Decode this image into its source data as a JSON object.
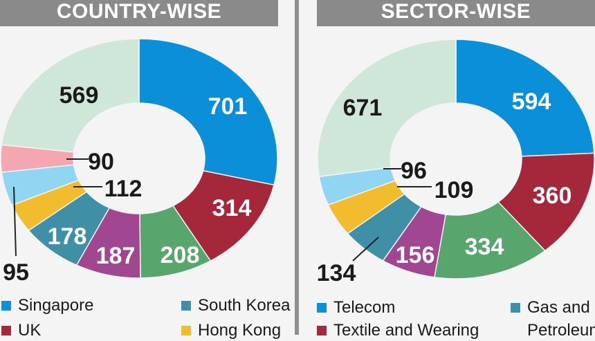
{
  "colors": {
    "blue": "#0a8fd8",
    "red": "#a5283a",
    "green": "#58a56d",
    "purple": "#a14691",
    "teal": "#3f8fa6",
    "yellow": "#f2bc2f",
    "lightblue": "#90d6f2",
    "pink": "#f4a7b0",
    "mint": "#cfe7d8",
    "banner": "#8a8a8a"
  },
  "chart_data": [
    {
      "type": "pie",
      "title": "COUNTRY-WISE",
      "segments": [
        {
          "value": 701,
          "label": "701",
          "legend": "Singapore",
          "color": "#0a8fd8"
        },
        {
          "value": 314,
          "label": "314",
          "legend": "UK",
          "color": "#a5283a"
        },
        {
          "value": 208,
          "label": "208",
          "legend": "",
          "color": "#58a56d"
        },
        {
          "value": 187,
          "label": "187",
          "legend": "",
          "color": "#a14691"
        },
        {
          "value": 178,
          "label": "178",
          "legend": "South Korea",
          "color": "#3f8fa6"
        },
        {
          "value": 95,
          "label": "95",
          "legend": "Hong Kong",
          "color": "#f2bc2f"
        },
        {
          "value": 112,
          "label": "112",
          "legend": "",
          "color": "#90d6f2"
        },
        {
          "value": 90,
          "label": "90",
          "legend": "",
          "color": "#f4a7b0"
        },
        {
          "value": 569,
          "label": "569",
          "legend": "",
          "color": "#cfe7d8"
        }
      ],
      "legend_visible": [
        "Singapore",
        "South Korea",
        "UK",
        "Hong Kong"
      ]
    },
    {
      "type": "pie",
      "title": "SECTOR-WISE",
      "segments": [
        {
          "value": 594,
          "label": "594",
          "legend": "Telecom",
          "color": "#0a8fd8"
        },
        {
          "value": 360,
          "label": "360",
          "legend": "Textile and Wearing",
          "color": "#a5283a"
        },
        {
          "value": 334,
          "label": "334",
          "legend": "",
          "color": "#58a56d"
        },
        {
          "value": 156,
          "label": "156",
          "legend": "",
          "color": "#a14691"
        },
        {
          "value": 134,
          "label": "134",
          "legend": "Gas and Petroleum",
          "color": "#3f8fa6"
        },
        {
          "value": 109,
          "label": "109",
          "legend": "",
          "color": "#f2bc2f"
        },
        {
          "value": 96,
          "label": "96",
          "legend": "",
          "color": "#90d6f2"
        },
        {
          "value": 671,
          "label": "671",
          "legend": "",
          "color": "#cfe7d8"
        }
      ],
      "legend_visible": [
        "Telecom",
        "Gas and Petroleum",
        "Textile and Wearing"
      ]
    }
  ],
  "panels": {
    "country": {
      "title": "COUNTRY-WISE",
      "legend": [
        {
          "label": "Singapore",
          "color": "#0a8fd8"
        },
        {
          "label": "South Korea",
          "color": "#3f8fa6"
        },
        {
          "label": "UK",
          "color": "#a5283a"
        },
        {
          "label": "Hong Kong",
          "color": "#f2bc2f"
        }
      ]
    },
    "sector": {
      "title": "SECTOR-WISE",
      "legend": [
        {
          "label": "Telecom",
          "color": "#0a8fd8"
        },
        {
          "label": "Gas and",
          "color": "#3f8fa6"
        },
        {
          "label": "Textile and Wearing",
          "color": "#a5283a"
        },
        {
          "label": "Petroleum",
          "color": ""
        }
      ]
    }
  }
}
